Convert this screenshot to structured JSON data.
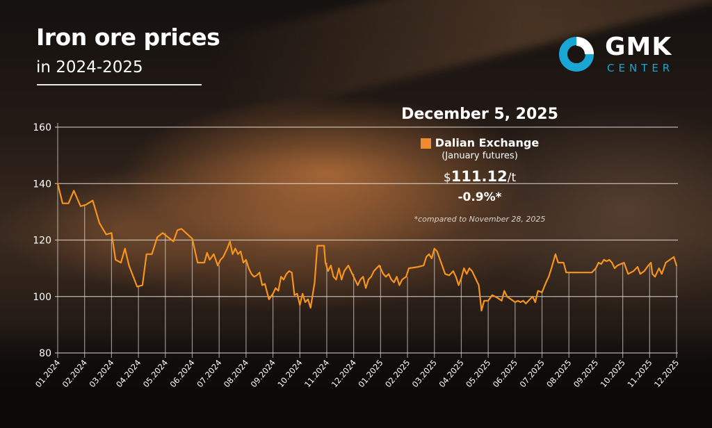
{
  "header": {
    "title": "Iron ore prices",
    "subtitle": "in 2024-2025"
  },
  "logo": {
    "name": "GMK",
    "tagline": "CENTER",
    "accent_color": "#1aa6d4",
    "icon": "donut-ring-icon"
  },
  "info_box": {
    "date": "December 5, 2025",
    "legend_label": "Dalian Exchange",
    "legend_color": "#f08a30",
    "contract": "(January futures)",
    "currency": "$",
    "price": "111.12",
    "unit": "/t",
    "change": "-0.9%*",
    "footnote": "*compared to November 28, 2025"
  },
  "chart_data": {
    "type": "line",
    "title": "Iron ore prices in 2024-2025",
    "xlabel": "",
    "ylabel": "",
    "ylim": [
      80,
      160
    ],
    "yticks": [
      80,
      100,
      120,
      140,
      160
    ],
    "grid": true,
    "line_color": "#f7941d",
    "legend_position": "top-right",
    "categories": [
      "01.2024",
      "02.2024",
      "03.2024",
      "04.2024",
      "05.2024",
      "06.2024",
      "07.2024",
      "08.2024",
      "09.2024",
      "10.2024",
      "11.2024",
      "12.2024",
      "01.2025",
      "02.2025",
      "03.2025",
      "04.2025",
      "05.2025",
      "06.2025",
      "07.2025",
      "08.2025",
      "09.2025",
      "10.2025",
      "11.2025",
      "12.2025"
    ],
    "series": [
      {
        "name": "Dalian Exchange (January futures)",
        "unit": "$/t",
        "points": [
          [
            0.0,
            140
          ],
          [
            0.18,
            133
          ],
          [
            0.4,
            133
          ],
          [
            0.6,
            137.5
          ],
          [
            0.85,
            132
          ],
          [
            1.05,
            132.5
          ],
          [
            1.3,
            134
          ],
          [
            1.55,
            126
          ],
          [
            1.8,
            122
          ],
          [
            2.0,
            122.5
          ],
          [
            2.15,
            113
          ],
          [
            2.35,
            112
          ],
          [
            2.5,
            117
          ],
          [
            2.65,
            111
          ],
          [
            2.95,
            103.5
          ],
          [
            3.15,
            104
          ],
          [
            3.3,
            115
          ],
          [
            3.5,
            115
          ],
          [
            3.7,
            121
          ],
          [
            3.9,
            122.5
          ],
          [
            4.3,
            119.5
          ],
          [
            4.45,
            123.5
          ],
          [
            4.6,
            124
          ],
          [
            5.0,
            120.5
          ],
          [
            5.2,
            112
          ],
          [
            5.45,
            112
          ],
          [
            5.55,
            115.5
          ],
          [
            5.65,
            113
          ],
          [
            5.8,
            115
          ],
          [
            5.95,
            111
          ],
          [
            6.05,
            113
          ],
          [
            6.15,
            114
          ],
          [
            6.3,
            117
          ],
          [
            6.4,
            119.5
          ],
          [
            6.5,
            115
          ],
          [
            6.6,
            117
          ],
          [
            6.7,
            115
          ],
          [
            6.8,
            116
          ],
          [
            6.9,
            112
          ],
          [
            7.0,
            113
          ],
          [
            7.1,
            110
          ],
          [
            7.2,
            108
          ],
          [
            7.3,
            107
          ],
          [
            7.4,
            107.5
          ],
          [
            7.5,
            108.5
          ],
          [
            7.6,
            104
          ],
          [
            7.7,
            104.5
          ],
          [
            7.85,
            99
          ],
          [
            8.0,
            101
          ],
          [
            8.1,
            103
          ],
          [
            8.2,
            102
          ],
          [
            8.3,
            107
          ],
          [
            8.4,
            106
          ],
          [
            8.5,
            108
          ],
          [
            8.6,
            109
          ],
          [
            8.7,
            108.5
          ],
          [
            8.8,
            100.5
          ],
          [
            8.9,
            101
          ],
          [
            9.0,
            97
          ],
          [
            9.1,
            101
          ],
          [
            9.2,
            98
          ],
          [
            9.3,
            99
          ],
          [
            9.4,
            96
          ],
          [
            9.55,
            105
          ],
          [
            9.65,
            118
          ],
          [
            9.9,
            118
          ],
          [
            9.95,
            112
          ],
          [
            10.05,
            109
          ],
          [
            10.15,
            111
          ],
          [
            10.25,
            107
          ],
          [
            10.35,
            106
          ],
          [
            10.45,
            110
          ],
          [
            10.55,
            106
          ],
          [
            10.65,
            109
          ],
          [
            10.8,
            111
          ],
          [
            10.95,
            108
          ],
          [
            11.05,
            106
          ],
          [
            11.15,
            104
          ],
          [
            11.25,
            106
          ],
          [
            11.35,
            107
          ],
          [
            11.45,
            103
          ],
          [
            11.55,
            106
          ],
          [
            11.65,
            107
          ],
          [
            11.75,
            109
          ],
          [
            11.85,
            110
          ],
          [
            11.95,
            111
          ],
          [
            12.1,
            108
          ],
          [
            12.2,
            107
          ],
          [
            12.3,
            108
          ],
          [
            12.4,
            106
          ],
          [
            12.5,
            105
          ],
          [
            12.6,
            107
          ],
          [
            12.7,
            104
          ],
          [
            12.8,
            106
          ],
          [
            12.95,
            107
          ],
          [
            13.05,
            110
          ],
          [
            13.4,
            110.5
          ],
          [
            13.6,
            111
          ],
          [
            13.7,
            114
          ],
          [
            13.8,
            115
          ],
          [
            13.9,
            113.5
          ],
          [
            14.0,
            117
          ],
          [
            14.1,
            116
          ],
          [
            14.25,
            112
          ],
          [
            14.4,
            108
          ],
          [
            14.55,
            107.5
          ],
          [
            14.7,
            109
          ],
          [
            14.8,
            107
          ],
          [
            14.9,
            104
          ],
          [
            15.0,
            106.5
          ],
          [
            15.1,
            110
          ],
          [
            15.2,
            108
          ],
          [
            15.3,
            110
          ],
          [
            15.4,
            109
          ],
          [
            15.55,
            106
          ],
          [
            15.65,
            104
          ],
          [
            15.75,
            95
          ],
          [
            15.85,
            98.5
          ],
          [
            16.0,
            98.5
          ],
          [
            16.15,
            100.5
          ],
          [
            16.35,
            99.5
          ],
          [
            16.5,
            98.5
          ],
          [
            16.6,
            102
          ],
          [
            16.7,
            100
          ],
          [
            16.85,
            99
          ],
          [
            17.0,
            98
          ],
          [
            17.1,
            98.5
          ],
          [
            17.2,
            98
          ],
          [
            17.3,
            98.5
          ],
          [
            17.4,
            97.5
          ],
          [
            17.55,
            99
          ],
          [
            17.65,
            100
          ],
          [
            17.75,
            98
          ],
          [
            17.85,
            102
          ],
          [
            18.0,
            101.5
          ],
          [
            18.15,
            105
          ],
          [
            18.25,
            107
          ],
          [
            18.35,
            110
          ],
          [
            18.5,
            115
          ],
          [
            18.6,
            112
          ],
          [
            18.8,
            112
          ],
          [
            18.9,
            108.5
          ],
          [
            19.2,
            108.5
          ],
          [
            19.5,
            108.5
          ],
          [
            19.85,
            108.5
          ],
          [
            20.0,
            110
          ],
          [
            20.1,
            112
          ],
          [
            20.2,
            111.5
          ],
          [
            20.3,
            113
          ],
          [
            20.4,
            112.5
          ],
          [
            20.5,
            113
          ],
          [
            20.6,
            112
          ],
          [
            20.7,
            110
          ],
          [
            20.8,
            111
          ],
          [
            21.05,
            112
          ],
          [
            21.2,
            108
          ],
          [
            21.4,
            109
          ],
          [
            21.55,
            110.5
          ],
          [
            21.65,
            108
          ],
          [
            21.8,
            109
          ],
          [
            21.95,
            111
          ],
          [
            22.05,
            112
          ],
          [
            22.1,
            108
          ],
          [
            22.2,
            107
          ],
          [
            22.35,
            110
          ],
          [
            22.45,
            108
          ],
          [
            22.6,
            112
          ],
          [
            22.75,
            113
          ],
          [
            22.9,
            114
          ],
          [
            23.0,
            111
          ]
        ]
      }
    ]
  },
  "watermark": "GMK"
}
